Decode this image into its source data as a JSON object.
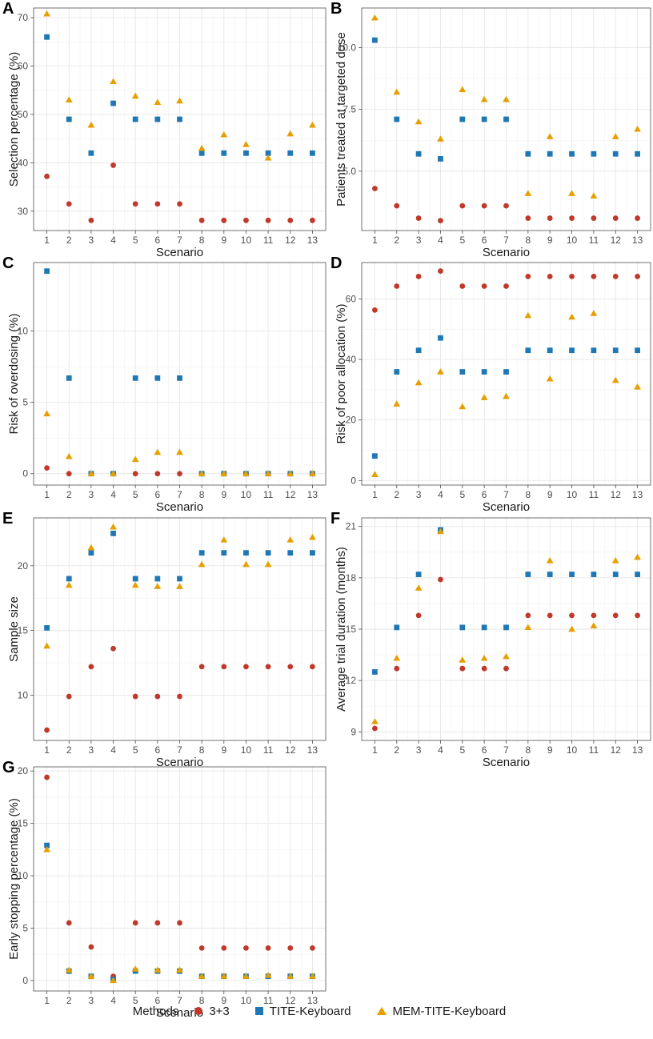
{
  "colors": {
    "s33": "#C0392B",
    "tite": "#1F78B4",
    "mem": "#E69F00"
  },
  "legend": {
    "title": "Methods",
    "items": [
      {
        "label": "3+3",
        "shape": "circle",
        "color": "#C0392B"
      },
      {
        "label": "TITE-Keyboard",
        "shape": "square",
        "color": "#1F78B4"
      },
      {
        "label": "MEM-TITE-Keyboard",
        "shape": "triangle",
        "color": "#E69F00"
      }
    ]
  },
  "chart_data": [
    {
      "panel": "A",
      "type": "scatter",
      "xlabel": "Scenario",
      "ylabel": "Selection percentage (%)",
      "x": [
        1,
        2,
        3,
        4,
        5,
        6,
        7,
        8,
        9,
        10,
        11,
        12,
        13
      ],
      "ylim": [
        26,
        72
      ],
      "yticks": [
        30,
        40,
        50,
        60,
        70
      ],
      "ytick_labels": [
        "30",
        "40",
        "50",
        "60",
        "70"
      ],
      "series": [
        {
          "name": "3+3",
          "values": [
            37.2,
            31.5,
            28.1,
            39.5,
            31.5,
            31.5,
            31.5,
            28.1,
            28.1,
            28.1,
            28.1,
            28.1,
            28.1
          ]
        },
        {
          "name": "TITE-Keyboard",
          "values": [
            66.0,
            49.0,
            42.0,
            52.3,
            49.0,
            49.0,
            49.0,
            42.0,
            42.0,
            42.0,
            42.0,
            42.0,
            42.0
          ]
        },
        {
          "name": "MEM-TITE-Keyboard",
          "values": [
            70.8,
            53.0,
            47.8,
            56.8,
            53.8,
            52.5,
            52.8,
            43.0,
            45.8,
            43.8,
            41.0,
            46.0,
            47.8
          ]
        }
      ]
    },
    {
      "panel": "B",
      "type": "scatter",
      "xlabel": "Scenario",
      "ylabel": "Patients treated at targeted dose",
      "x": [
        1,
        2,
        3,
        4,
        5,
        6,
        7,
        8,
        9,
        10,
        11,
        12,
        13
      ],
      "ylim": [
        2.6,
        11.6
      ],
      "yticks": [
        5.0,
        7.5,
        10.0
      ],
      "ytick_labels": [
        "5.0",
        "7.5",
        "10.0"
      ],
      "series": [
        {
          "name": "3+3",
          "values": [
            4.3,
            3.6,
            3.1,
            3.0,
            3.6,
            3.6,
            3.6,
            3.1,
            3.1,
            3.1,
            3.1,
            3.1,
            3.1
          ]
        },
        {
          "name": "TITE-Keyboard",
          "values": [
            10.3,
            7.1,
            5.7,
            5.5,
            7.1,
            7.1,
            7.1,
            5.7,
            5.7,
            5.7,
            5.7,
            5.7,
            5.7
          ]
        },
        {
          "name": "MEM-TITE-Keyboard",
          "values": [
            11.2,
            8.2,
            7.0,
            6.3,
            8.3,
            7.9,
            7.9,
            4.1,
            6.4,
            4.1,
            4.0,
            6.4,
            6.7
          ]
        }
      ]
    },
    {
      "panel": "C",
      "type": "scatter",
      "xlabel": "Scenario",
      "ylabel": "Risk of overdosing (%)",
      "x": [
        1,
        2,
        3,
        4,
        5,
        6,
        7,
        8,
        9,
        10,
        11,
        12,
        13
      ],
      "ylim": [
        -0.8,
        14.8
      ],
      "yticks": [
        0,
        5,
        10
      ],
      "ytick_labels": [
        "0",
        "5",
        "10"
      ],
      "series": [
        {
          "name": "3+3",
          "values": [
            0.4,
            0,
            0,
            0,
            0,
            0,
            0,
            0,
            0,
            0,
            0,
            0,
            0
          ]
        },
        {
          "name": "TITE-Keyboard",
          "values": [
            14.2,
            6.7,
            0,
            0,
            6.7,
            6.7,
            6.7,
            0,
            0,
            0,
            0,
            0,
            0
          ]
        },
        {
          "name": "MEM-TITE-Keyboard",
          "values": [
            4.2,
            1.2,
            0,
            0,
            1.0,
            1.5,
            1.5,
            0,
            0,
            0,
            0,
            0,
            0
          ]
        }
      ]
    },
    {
      "panel": "D",
      "type": "scatter",
      "xlabel": "Scenario",
      "ylabel": "Risk of poor allocation (%)",
      "x": [
        1,
        2,
        3,
        4,
        5,
        6,
        7,
        8,
        9,
        10,
        11,
        12,
        13
      ],
      "ylim": [
        -1.5,
        72
      ],
      "yticks": [
        0,
        20,
        40,
        60
      ],
      "ytick_labels": [
        "0",
        "20",
        "40",
        "60"
      ],
      "series": [
        {
          "name": "3+3",
          "values": [
            56.3,
            64.2,
            67.4,
            69.2,
            64.2,
            64.2,
            64.2,
            67.4,
            67.4,
            67.4,
            67.4,
            67.4,
            67.4
          ]
        },
        {
          "name": "TITE-Keyboard",
          "values": [
            8.1,
            35.9,
            43.0,
            47.1,
            35.9,
            35.9,
            35.9,
            43.0,
            43.0,
            43.0,
            43.0,
            43.0,
            43.0
          ]
        },
        {
          "name": "MEM-TITE-Keyboard",
          "values": [
            2.0,
            25.3,
            32.3,
            35.9,
            24.4,
            27.4,
            27.8,
            54.5,
            33.6,
            54.0,
            55.2,
            33.1,
            30.9
          ]
        }
      ]
    },
    {
      "panel": "E",
      "type": "scatter",
      "xlabel": "Scenario",
      "ylabel": "Sample size",
      "x": [
        1,
        2,
        3,
        4,
        5,
        6,
        7,
        8,
        9,
        10,
        11,
        12,
        13
      ],
      "ylim": [
        6.5,
        23.7
      ],
      "yticks": [
        10,
        15,
        20
      ],
      "ytick_labels": [
        "10",
        "15",
        "20"
      ],
      "series": [
        {
          "name": "3+3",
          "values": [
            7.3,
            9.9,
            12.2,
            13.6,
            9.9,
            9.9,
            9.9,
            12.2,
            12.2,
            12.2,
            12.2,
            12.2,
            12.2
          ]
        },
        {
          "name": "TITE-Keyboard",
          "values": [
            15.2,
            19.0,
            21.0,
            22.5,
            19.0,
            19.0,
            19.0,
            21.0,
            21.0,
            21.0,
            21.0,
            21.0,
            21.0
          ]
        },
        {
          "name": "MEM-TITE-Keyboard",
          "values": [
            13.8,
            18.5,
            21.4,
            23.0,
            18.5,
            18.4,
            18.4,
            20.1,
            22.0,
            20.1,
            20.1,
            22.0,
            22.2
          ]
        }
      ]
    },
    {
      "panel": "F",
      "type": "scatter",
      "xlabel": "Scenario",
      "ylabel": "Average trial duration (months)",
      "x": [
        1,
        2,
        3,
        4,
        5,
        6,
        7,
        8,
        9,
        10,
        11,
        12,
        13
      ],
      "ylim": [
        8.5,
        21.5
      ],
      "yticks": [
        9,
        12,
        15,
        18,
        21
      ],
      "ytick_labels": [
        "9",
        "12",
        "15",
        "18",
        "21"
      ],
      "series": [
        {
          "name": "3+3",
          "values": [
            9.2,
            12.7,
            15.8,
            17.9,
            12.7,
            12.7,
            12.7,
            15.8,
            15.8,
            15.8,
            15.8,
            15.8,
            15.8
          ]
        },
        {
          "name": "TITE-Keyboard",
          "values": [
            12.5,
            15.1,
            18.2,
            20.8,
            15.1,
            15.1,
            15.1,
            18.2,
            18.2,
            18.2,
            18.2,
            18.2,
            18.2
          ]
        },
        {
          "name": "MEM-TITE-Keyboard",
          "values": [
            9.6,
            13.3,
            17.4,
            20.7,
            13.2,
            13.3,
            13.4,
            15.1,
            19.0,
            15.0,
            15.2,
            19.0,
            19.2
          ]
        }
      ]
    },
    {
      "panel": "G",
      "type": "scatter",
      "xlabel": "Scenario",
      "ylabel": "Early stopping percentage (%)",
      "x": [
        1,
        2,
        3,
        4,
        5,
        6,
        7,
        8,
        9,
        10,
        11,
        12,
        13
      ],
      "ylim": [
        -1.0,
        20.4
      ],
      "yticks": [
        0,
        5,
        10,
        15,
        20
      ],
      "ytick_labels": [
        "0",
        "5",
        "10",
        "15",
        "20"
      ],
      "series": [
        {
          "name": "3+3",
          "values": [
            19.4,
            5.5,
            3.2,
            0.4,
            5.5,
            5.5,
            5.5,
            3.1,
            3.1,
            3.1,
            3.1,
            3.1,
            3.1
          ]
        },
        {
          "name": "TITE-Keyboard",
          "values": [
            12.9,
            0.9,
            0.4,
            0.1,
            0.9,
            0.9,
            0.9,
            0.4,
            0.4,
            0.4,
            0.4,
            0.4,
            0.4
          ]
        },
        {
          "name": "MEM-TITE-Keyboard",
          "values": [
            12.5,
            1.0,
            0.4,
            0.0,
            1.1,
            1.0,
            1.0,
            0.4,
            0.4,
            0.4,
            0.5,
            0.4,
            0.4
          ]
        }
      ]
    }
  ]
}
